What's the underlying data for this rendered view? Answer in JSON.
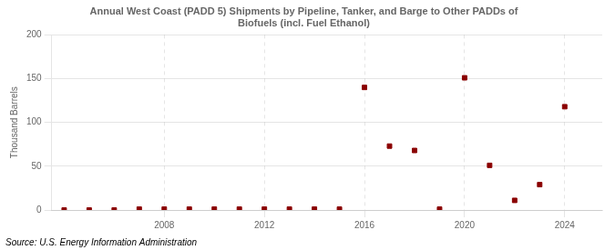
{
  "chart_data": {
    "type": "scatter",
    "title": [
      "Annual West Coast (PADD 5) Shipments by Pipeline, Tanker, and Barge to Other PADDs of",
      "Biofuels (incl. Fuel Ethanol)"
    ],
    "ylabel": "Thousand Barrels",
    "annotations": [
      "Source: U.S. Energy Information Administration"
    ],
    "x": [
      2004,
      2005,
      2006,
      2007,
      2008,
      2009,
      2010,
      2011,
      2012,
      2013,
      2014,
      2015,
      2016,
      2017,
      2018,
      2019,
      2020,
      2021,
      2022,
      2023,
      2024
    ],
    "values": [
      0,
      0,
      0,
      1,
      1,
      1,
      1,
      1,
      1,
      1,
      1,
      1,
      140,
      73,
      68,
      1,
      151,
      51,
      11,
      29,
      118
    ],
    "color": "#8b0000",
    "marker": "square",
    "xlim": [
      2003.5,
      2025.5
    ],
    "xticks": [
      2008,
      2012,
      2016,
      2020,
      2024
    ],
    "ylim": [
      0,
      200
    ],
    "yticks": [
      0,
      50,
      100,
      150,
      200
    ],
    "grid": true
  }
}
